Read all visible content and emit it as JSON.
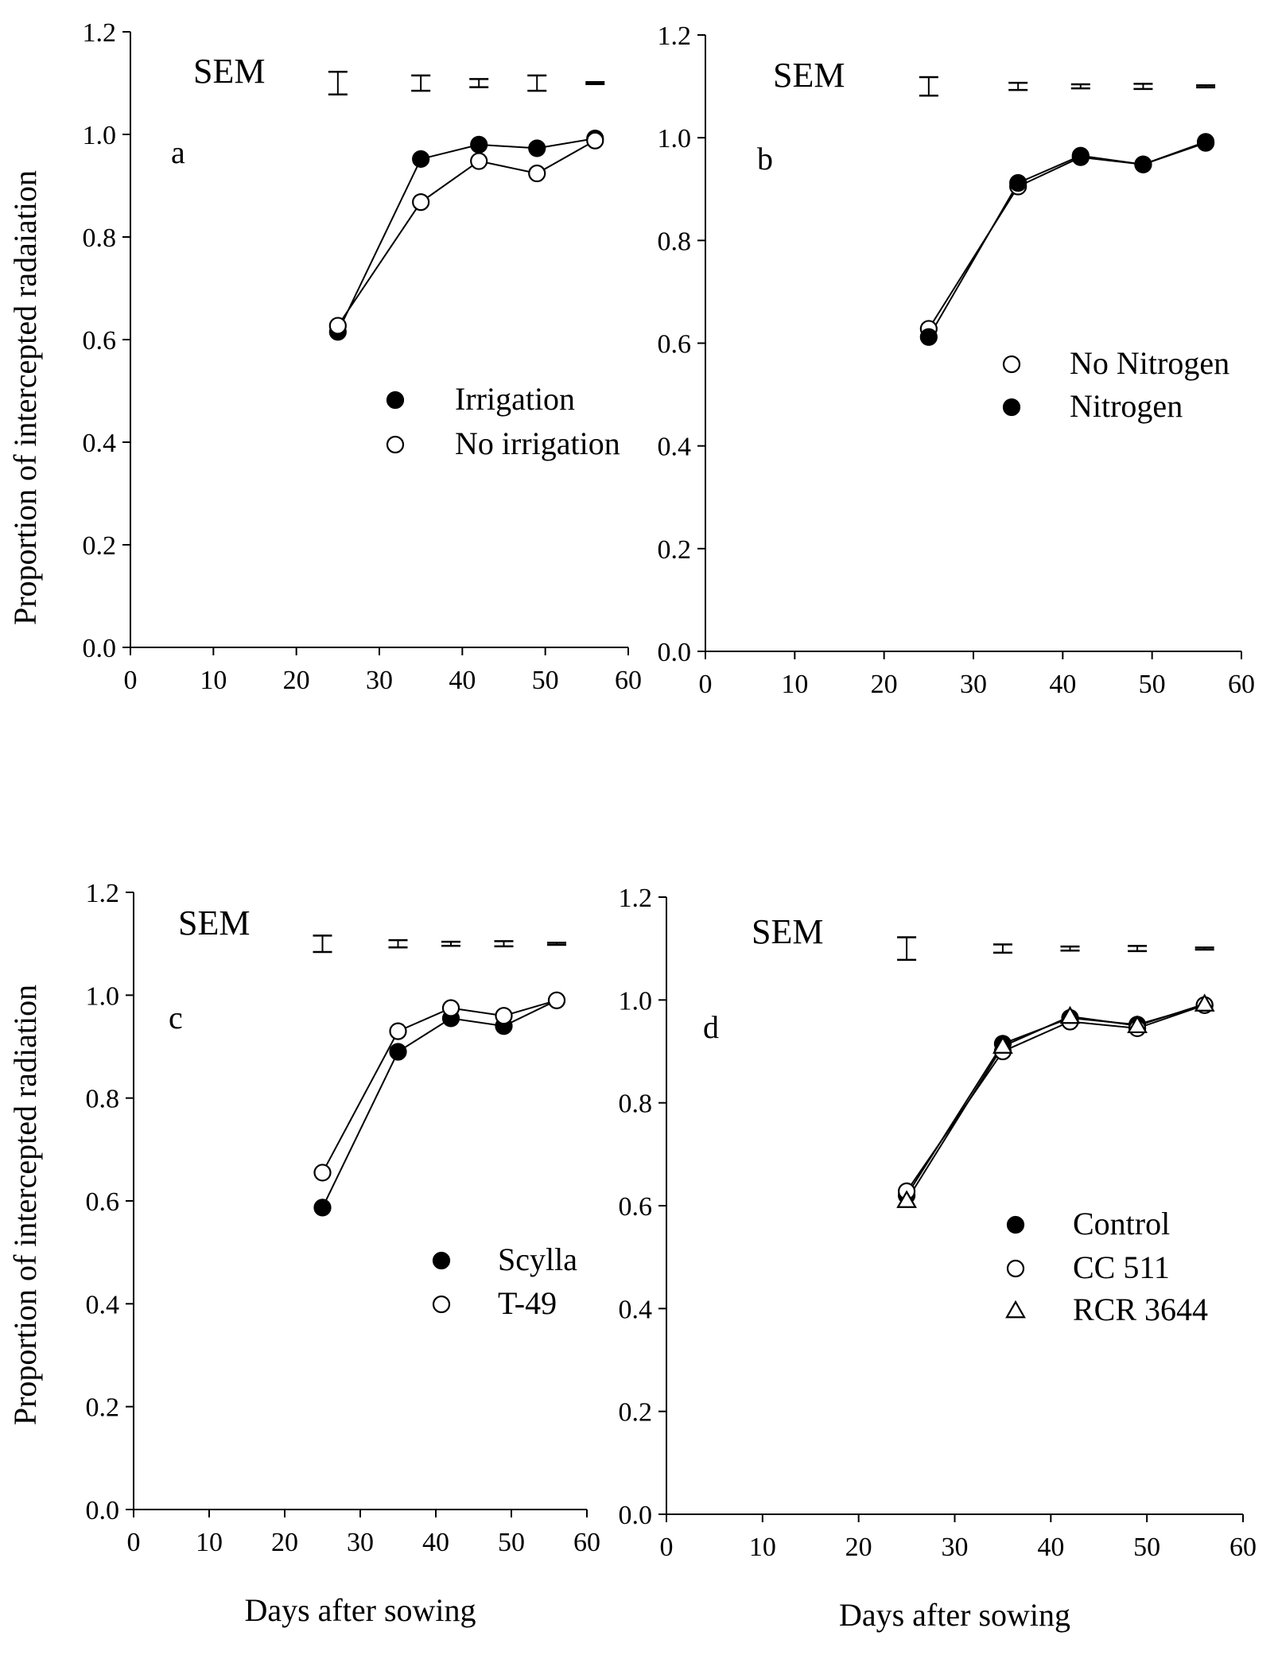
{
  "figure": {
    "ylabel": "Proportion of intercepted radaiation",
    "ylabel_bottom": "Proportion of intercepted radiation",
    "xlabel": "Days after sowing"
  },
  "chart_data": [
    {
      "type": "line",
      "panel_label": "a",
      "sem_label": "SEM",
      "xlim": [
        0,
        60
      ],
      "ylim": [
        0.0,
        1.2
      ],
      "xticks": [
        "0",
        "10",
        "20",
        "30",
        "40",
        "50",
        "60"
      ],
      "yticks": [
        "0.0",
        "0.2",
        "0.4",
        "0.6",
        "0.8",
        "1.0",
        "1.2"
      ],
      "xlabel": "",
      "ylabel": "Proportion of intercepted radaiation",
      "x": [
        25,
        35,
        42,
        49,
        56
      ],
      "sem": [
        0.022,
        0.015,
        0.008,
        0.015,
        0.002
      ],
      "sem_y": 1.1,
      "legend_position": "center-right",
      "grid": false,
      "series": [
        {
          "name": "Irrigation",
          "marker": "filled-circle",
          "values": [
            0.615,
            0.952,
            0.98,
            0.973,
            0.992
          ]
        },
        {
          "name": "No irrigation",
          "marker": "open-circle",
          "values": [
            0.627,
            0.868,
            0.948,
            0.924,
            0.988
          ]
        }
      ]
    },
    {
      "type": "line",
      "panel_label": "b",
      "sem_label": "SEM",
      "xlim": [
        0,
        60
      ],
      "ylim": [
        0.0,
        1.2
      ],
      "xticks": [
        "0",
        "10",
        "20",
        "30",
        "40",
        "50",
        "60"
      ],
      "yticks": [
        "0.0",
        "0.2",
        "0.4",
        "0.6",
        "0.8",
        "1.0",
        "1.2"
      ],
      "xlabel": "",
      "ylabel": "",
      "x": [
        25,
        35,
        42,
        49,
        56
      ],
      "sem": [
        0.018,
        0.007,
        0.004,
        0.005,
        0.002
      ],
      "sem_y": 1.1,
      "legend_position": "center-right",
      "grid": false,
      "series": [
        {
          "name": "No Nitrogen",
          "marker": "open-circle",
          "values": [
            0.628,
            0.905,
            0.962,
            0.948,
            0.99
          ]
        },
        {
          "name": "Nitrogen",
          "marker": "filled-circle",
          "values": [
            0.612,
            0.912,
            0.965,
            0.948,
            0.992
          ]
        }
      ]
    },
    {
      "type": "line",
      "panel_label": "c",
      "sem_label": "SEM",
      "xlim": [
        0,
        60
      ],
      "ylim": [
        0.0,
        1.2
      ],
      "xticks": [
        "0",
        "10",
        "20",
        "30",
        "40",
        "50",
        "60"
      ],
      "yticks": [
        "0.0",
        "0.2",
        "0.4",
        "0.6",
        "0.8",
        "1.0",
        "1.2"
      ],
      "xlabel": "Days after sowing",
      "ylabel": "Proportion of intercepted radiation",
      "x": [
        25,
        35,
        42,
        49,
        56
      ],
      "sem": [
        0.016,
        0.007,
        0.004,
        0.005,
        0.002
      ],
      "sem_y": 1.1,
      "legend_position": "center-right",
      "grid": false,
      "series": [
        {
          "name": "Scylla",
          "marker": "filled-circle",
          "values": [
            0.587,
            0.89,
            0.955,
            0.94,
            0.99
          ]
        },
        {
          "name": "T-49",
          "marker": "open-circle",
          "values": [
            0.655,
            0.93,
            0.975,
            0.96,
            0.99
          ]
        }
      ]
    },
    {
      "type": "line",
      "panel_label": "d",
      "sem_label": "SEM",
      "xlim": [
        0,
        60
      ],
      "ylim": [
        0.0,
        1.2
      ],
      "xticks": [
        "0",
        "10",
        "20",
        "30",
        "40",
        "50",
        "60"
      ],
      "yticks": [
        "0.0",
        "0.2",
        "0.4",
        "0.6",
        "0.8",
        "1.0",
        "1.2"
      ],
      "xlabel": "Days after sowing",
      "ylabel": "",
      "x": [
        25,
        35,
        42,
        49,
        56
      ],
      "sem": [
        0.022,
        0.008,
        0.004,
        0.005,
        0.002
      ],
      "sem_y": 1.1,
      "legend_position": "bottom-right",
      "grid": false,
      "series": [
        {
          "name": "Control",
          "marker": "filled-circle",
          "values": [
            0.62,
            0.915,
            0.965,
            0.952,
            0.99
          ]
        },
        {
          "name": "CC 511",
          "marker": "open-circle",
          "values": [
            0.628,
            0.9,
            0.958,
            0.945,
            0.99
          ]
        },
        {
          "name": "RCR 3644",
          "marker": "open-triangle",
          "values": [
            0.61,
            0.91,
            0.968,
            0.95,
            0.992
          ]
        }
      ]
    }
  ]
}
